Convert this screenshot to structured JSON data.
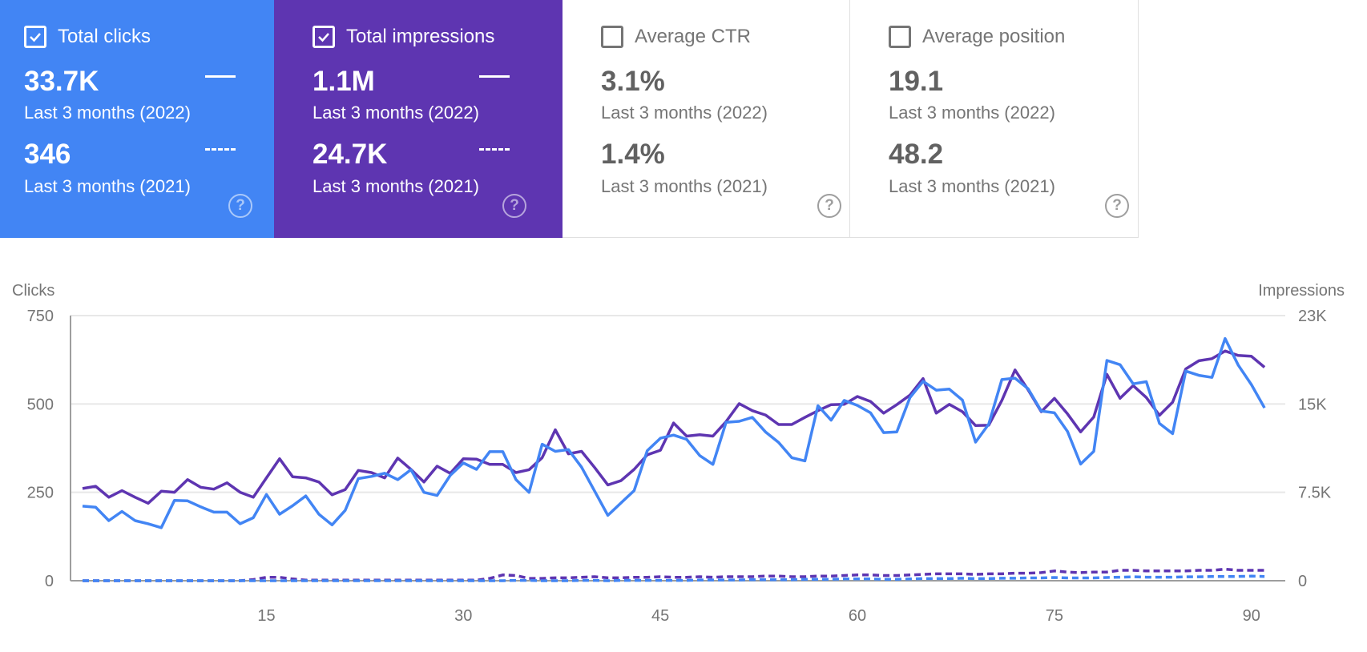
{
  "cards": [
    {
      "label": "Total clicks",
      "checked": true,
      "value_current": "33.7K",
      "period_current": "Last 3 months (2022)",
      "value_previous": "346",
      "period_previous": "Last 3 months (2021)",
      "color": "#4285f4"
    },
    {
      "label": "Total impressions",
      "checked": true,
      "value_current": "1.1M",
      "period_current": "Last 3 months (2022)",
      "value_previous": "24.7K",
      "period_previous": "Last 3 months (2021)",
      "color": "#5e35b1"
    },
    {
      "label": "Average CTR",
      "checked": false,
      "value_current": "3.1%",
      "period_current": "Last 3 months (2022)",
      "value_previous": "1.4%",
      "period_previous": "Last 3 months (2021)"
    },
    {
      "label": "Average position",
      "checked": false,
      "value_current": "19.1",
      "period_current": "Last 3 months (2022)",
      "value_previous": "48.2",
      "period_previous": "Last 3 months (2021)"
    }
  ],
  "help_icon": "?",
  "chart_data": {
    "type": "line",
    "ylabel_left": "Clicks",
    "ylabel_right": "Impressions",
    "ylim_left": [
      0,
      750
    ],
    "ylim_right_thousands": [
      0,
      23
    ],
    "yticks_left": [
      "0",
      "250",
      "500",
      "750"
    ],
    "yticks_left_values": [
      0,
      250,
      500,
      750
    ],
    "yticks_right": [
      "0",
      "7.5K",
      "15K",
      "23K"
    ],
    "yticks_right_values": [
      0,
      7.667,
      15.333,
      23
    ],
    "xticks": [
      "15",
      "30",
      "45",
      "60",
      "75",
      "90"
    ],
    "xticks_values": [
      15,
      30,
      45,
      60,
      75,
      90
    ],
    "xlim": [
      1,
      91
    ],
    "grid": true,
    "colors": {
      "clicks": "#4285f4",
      "impressions": "#5e35b1"
    },
    "series": [
      {
        "name": "Clicks (2022)",
        "axis": "left",
        "style": "solid",
        "color": "#4285f4",
        "values": [
          211,
          208,
          170,
          196,
          170,
          161,
          150,
          227,
          226,
          209,
          194,
          194,
          161,
          178,
          244,
          188,
          212,
          240,
          188,
          158,
          199,
          289,
          295,
          304,
          286,
          314,
          250,
          241,
          298,
          333,
          315,
          365,
          365,
          286,
          250,
          386,
          366,
          371,
          321,
          253,
          185,
          220,
          255,
          368,
          403,
          412,
          400,
          354,
          329,
          448,
          451,
          462,
          421,
          391,
          348,
          339,
          495,
          454,
          510,
          496,
          475,
          419,
          421,
          518,
          564,
          539,
          542,
          511,
          392,
          443,
          569,
          573,
          543,
          480,
          475,
          422,
          330,
          366,
          623,
          611,
          557,
          563,
          445,
          416,
          593,
          581,
          575,
          685,
          610,
          555,
          489
        ]
      },
      {
        "name": "Impressions (2022, thousands)",
        "axis": "right",
        "style": "solid",
        "color": "#5e35b1",
        "values": [
          8.0,
          8.19,
          7.24,
          7.82,
          7.24,
          6.72,
          7.76,
          7.67,
          8.77,
          8.1,
          7.94,
          8.49,
          7.67,
          7.24,
          8.92,
          10.58,
          9.02,
          8.92,
          8.56,
          7.45,
          7.91,
          9.57,
          9.38,
          8.92,
          10.64,
          9.66,
          8.56,
          9.94,
          9.32,
          10.58,
          10.55,
          10.09,
          10.09,
          9.38,
          9.63,
          10.67,
          13.09,
          11.01,
          11.22,
          9.81,
          8.31,
          8.68,
          9.66,
          10.92,
          11.32,
          13.68,
          12.54,
          12.67,
          12.54,
          13.8,
          15.36,
          14.75,
          14.38,
          13.55,
          13.55,
          14.17,
          14.75,
          15.27,
          15.3,
          15.98,
          15.55,
          14.54,
          15.27,
          16.1,
          17.54,
          14.54,
          15.3,
          14.66,
          13.46,
          13.49,
          15.64,
          18.28,
          16.56,
          14.66,
          15.82,
          14.47,
          12.91,
          14.2,
          17.91,
          15.82,
          16.93,
          15.89,
          14.35,
          15.49,
          18.37,
          19.08,
          19.26,
          19.93,
          19.54,
          19.47,
          18.52
        ]
      },
      {
        "name": "Clicks (2021)",
        "axis": "left",
        "style": "dashed",
        "color": "#4285f4",
        "values": [
          0,
          0,
          0,
          0,
          0,
          0,
          0,
          0,
          0,
          0,
          0,
          0,
          0,
          0,
          0,
          0,
          0,
          0,
          0,
          0,
          0,
          0,
          0,
          0,
          0,
          0,
          0,
          0,
          0,
          0,
          0,
          0,
          0,
          1,
          1,
          0,
          0,
          0,
          1,
          1,
          0,
          1,
          1,
          1,
          1,
          1,
          1,
          2,
          2,
          2,
          2,
          3,
          3,
          3,
          3,
          4,
          4,
          4,
          5,
          5,
          5,
          4,
          4,
          5,
          6,
          6,
          6,
          7,
          6,
          6,
          7,
          7,
          8,
          8,
          9,
          8,
          8,
          8,
          9,
          10,
          11,
          10,
          10,
          10,
          11,
          11,
          12,
          12,
          12,
          13,
          12
        ]
      },
      {
        "name": "Impressions (2021, thousands)",
        "axis": "right",
        "style": "dashed",
        "color": "#5e35b1",
        "values": [
          0,
          0,
          0,
          0,
          0,
          0,
          0,
          0,
          0,
          0,
          0,
          0,
          0,
          0.1,
          0.3,
          0.3,
          0.15,
          0.05,
          0.05,
          0.05,
          0.05,
          0.05,
          0.05,
          0.05,
          0.05,
          0.05,
          0.05,
          0.05,
          0.05,
          0.05,
          0.05,
          0.2,
          0.5,
          0.45,
          0.2,
          0.2,
          0.25,
          0.25,
          0.3,
          0.35,
          0.25,
          0.25,
          0.3,
          0.3,
          0.35,
          0.3,
          0.3,
          0.35,
          0.3,
          0.35,
          0.35,
          0.35,
          0.4,
          0.4,
          0.35,
          0.35,
          0.4,
          0.4,
          0.45,
          0.5,
          0.5,
          0.45,
          0.45,
          0.5,
          0.55,
          0.6,
          0.6,
          0.6,
          0.55,
          0.6,
          0.6,
          0.65,
          0.65,
          0.7,
          0.85,
          0.75,
          0.7,
          0.75,
          0.75,
          0.9,
          0.9,
          0.85,
          0.85,
          0.85,
          0.85,
          0.9,
          0.9,
          1.0,
          0.9,
          0.9,
          0.9
        ]
      }
    ]
  }
}
